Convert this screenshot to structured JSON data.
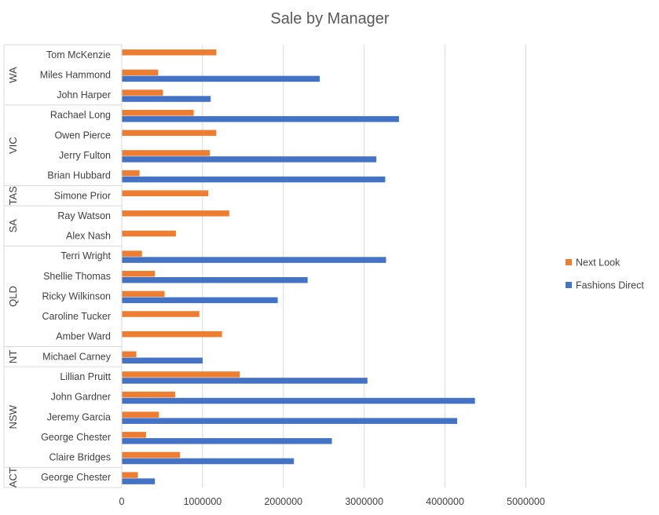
{
  "chart_data": {
    "type": "bar",
    "orientation": "horizontal",
    "title": "Sale by Manager",
    "xlim": [
      0,
      5000000
    ],
    "xticks": [
      0,
      1000000,
      2000000,
      3000000,
      4000000,
      5000000
    ],
    "xtick_labels": [
      "0",
      "1000000",
      "2000000",
      "3000000",
      "4000000",
      "5000000"
    ],
    "grid": true,
    "legend_position": "right",
    "categories": [
      {
        "group": "WA",
        "name": "Tom McKenzie"
      },
      {
        "group": "WA",
        "name": "Miles Hammond"
      },
      {
        "group": "WA",
        "name": "John Harper"
      },
      {
        "group": "VIC",
        "name": "Rachael Long"
      },
      {
        "group": "VIC",
        "name": "Owen Pierce"
      },
      {
        "group": "VIC",
        "name": "Jerry Fulton"
      },
      {
        "group": "VIC",
        "name": "Brian Hubbard"
      },
      {
        "group": "TAS",
        "name": "Simone Prior"
      },
      {
        "group": "SA",
        "name": "Ray Watson"
      },
      {
        "group": "SA",
        "name": "Alex Nash"
      },
      {
        "group": "QLD",
        "name": "Terri Wright"
      },
      {
        "group": "QLD",
        "name": "Shellie Thomas"
      },
      {
        "group": "QLD",
        "name": "Ricky Wilkinson"
      },
      {
        "group": "QLD",
        "name": "Caroline Tucker"
      },
      {
        "group": "QLD",
        "name": "Amber Ward"
      },
      {
        "group": "NT",
        "name": "Michael Carney"
      },
      {
        "group": "NSW",
        "name": "Lillian Pruitt"
      },
      {
        "group": "NSW",
        "name": "John Gardner"
      },
      {
        "group": "NSW",
        "name": "Jeremy Garcia"
      },
      {
        "group": "NSW",
        "name": "George Chester"
      },
      {
        "group": "NSW",
        "name": "Claire Bridges"
      },
      {
        "group": "ACT",
        "name": "George Chester"
      }
    ],
    "groups": [
      "WA",
      "VIC",
      "TAS",
      "SA",
      "QLD",
      "NT",
      "NSW",
      "ACT"
    ],
    "series": [
      {
        "name": "Next Look",
        "color": "#ED7D31",
        "values": [
          1170000,
          450000,
          510000,
          890000,
          1170000,
          1090000,
          220000,
          1070000,
          1330000,
          670000,
          250000,
          410000,
          530000,
          960000,
          1240000,
          180000,
          1460000,
          660000,
          460000,
          300000,
          720000,
          200000
        ]
      },
      {
        "name": "Fashions Direct",
        "color": "#4472C4",
        "values": [
          0,
          2450000,
          1100000,
          3430000,
          0,
          3150000,
          3260000,
          0,
          0,
          0,
          3270000,
          2300000,
          1930000,
          0,
          0,
          1000000,
          3040000,
          4370000,
          4150000,
          2600000,
          2130000,
          410000
        ]
      }
    ],
    "legend_order": [
      "Next Look",
      "Fashions Direct"
    ]
  }
}
